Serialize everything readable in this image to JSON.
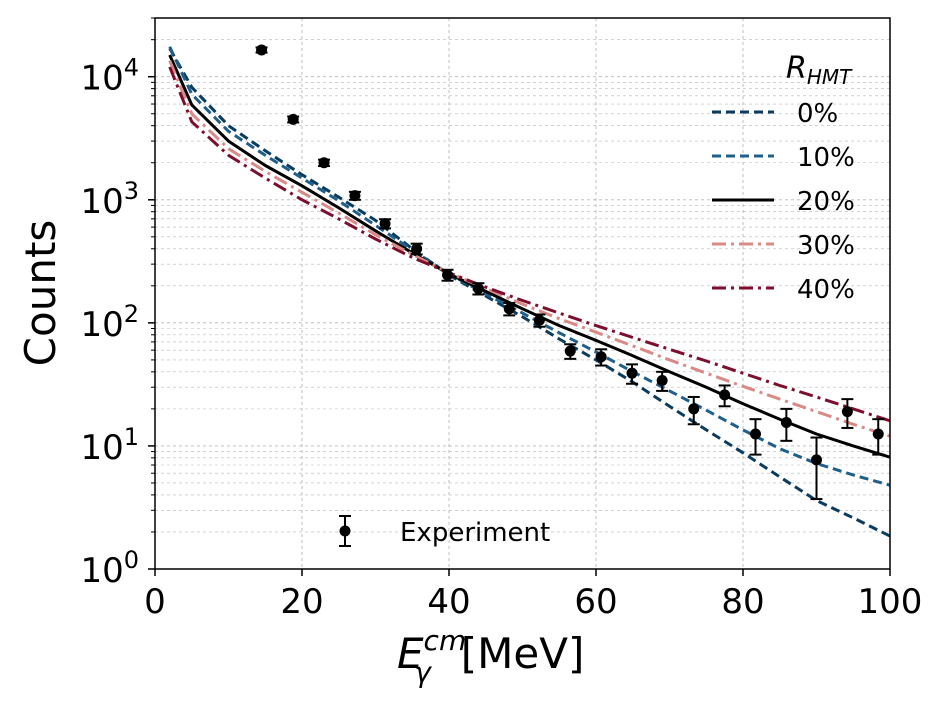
{
  "chart_data": {
    "type": "line",
    "xlabel_base": "E",
    "xlabel_sup": "cm",
    "xlabel_sub": "γ",
    "xlabel_unit": "[MeV]",
    "ylabel": "Counts",
    "xlim": [
      0,
      100
    ],
    "ylim": [
      1,
      30000
    ],
    "yscale": "log",
    "grid": true,
    "legend_title_base": "R",
    "legend_title_sub": "HMT",
    "legend_placement": "top-right",
    "x_ticks": [
      "0",
      "20",
      "40",
      "60",
      "80",
      "100"
    ],
    "y_ticks": [
      {
        "base": "10",
        "exp": "0"
      },
      {
        "base": "10",
        "exp": "1"
      },
      {
        "base": "10",
        "exp": "2"
      },
      {
        "base": "10",
        "exp": "3"
      },
      {
        "base": "10",
        "exp": "4"
      }
    ],
    "series": [
      {
        "name": "0%",
        "color": "#0b3c5d",
        "dash": "dashed",
        "x": [
          2,
          5,
          10,
          15,
          20,
          25,
          30,
          35,
          40,
          45,
          50,
          55,
          60,
          65,
          70,
          75,
          80,
          85,
          90,
          95,
          100
        ],
        "y": [
          17000,
          8200,
          4000,
          2500,
          1600,
          1050,
          680,
          400,
          245,
          165,
          112,
          74,
          50,
          33,
          21,
          13.5,
          8.8,
          5.6,
          3.6,
          2.6,
          1.85
        ]
      },
      {
        "name": "10%",
        "color": "#1f5f8b",
        "dash": "dashed",
        "x": [
          2,
          5,
          10,
          15,
          20,
          25,
          30,
          35,
          40,
          45,
          50,
          55,
          60,
          65,
          70,
          75,
          80,
          85,
          90,
          95,
          100
        ],
        "y": [
          17500,
          7200,
          3600,
          2300,
          1500,
          980,
          620,
          390,
          250,
          172,
          120,
          83,
          58,
          40,
          28,
          19.5,
          13.5,
          9.5,
          7.2,
          5.8,
          4.8
        ]
      },
      {
        "name": "20%",
        "color": "#000000",
        "dash": "solid",
        "x": [
          2,
          5,
          10,
          15,
          20,
          25,
          30,
          35,
          40,
          45,
          50,
          55,
          60,
          65,
          70,
          75,
          80,
          85,
          90,
          95,
          100
        ],
        "y": [
          15000,
          5900,
          3000,
          1900,
          1300,
          860,
          560,
          370,
          250,
          180,
          130,
          95,
          72,
          54,
          40,
          30,
          22,
          16.5,
          12.5,
          10,
          8.1
        ]
      },
      {
        "name": "30%",
        "color": "#d98a86",
        "dash": "dashdot",
        "x": [
          2,
          5,
          10,
          15,
          20,
          25,
          30,
          35,
          40,
          45,
          50,
          55,
          60,
          65,
          70,
          75,
          80,
          85,
          90,
          95,
          100
        ],
        "y": [
          13500,
          5000,
          2600,
          1700,
          1150,
          780,
          520,
          360,
          255,
          190,
          142,
          108,
          84,
          65,
          50,
          39,
          30.5,
          24,
          19,
          15,
          12
        ]
      },
      {
        "name": "40%",
        "color": "#7d0f2e",
        "dash": "dashdot",
        "x": [
          2,
          5,
          10,
          15,
          20,
          25,
          30,
          35,
          40,
          45,
          50,
          55,
          60,
          65,
          70,
          75,
          80,
          85,
          90,
          95,
          100
        ],
        "y": [
          12000,
          4300,
          2300,
          1500,
          1000,
          700,
          480,
          340,
          255,
          195,
          152,
          120,
          95,
          76,
          61,
          49,
          39,
          31,
          25,
          20,
          16
        ]
      }
    ],
    "experiment": {
      "name": "Experiment",
      "color": "#000000",
      "points": [
        {
          "x": 14.5,
          "y": 16500,
          "err": 800
        },
        {
          "x": 18.8,
          "y": 4500,
          "err": 250
        },
        {
          "x": 23,
          "y": 2000,
          "err": 120
        },
        {
          "x": 27.2,
          "y": 1080,
          "err": 80
        },
        {
          "x": 31.3,
          "y": 640,
          "err": 55
        },
        {
          "x": 35.6,
          "y": 400,
          "err": 40
        },
        {
          "x": 39.8,
          "y": 245,
          "err": 25
        },
        {
          "x": 44,
          "y": 190,
          "err": 20
        },
        {
          "x": 48.2,
          "y": 130,
          "err": 15
        },
        {
          "x": 52.3,
          "y": 105,
          "err": 12
        },
        {
          "x": 56.5,
          "y": 59,
          "err": 8
        },
        {
          "x": 60.7,
          "y": 53,
          "err": 8
        },
        {
          "x": 64.9,
          "y": 39,
          "err": 7
        },
        {
          "x": 69,
          "y": 34,
          "err": 6
        },
        {
          "x": 73.3,
          "y": 20,
          "err": 5
        },
        {
          "x": 77.5,
          "y": 26,
          "err": 5
        },
        {
          "x": 81.7,
          "y": 12.5,
          "err": 4
        },
        {
          "x": 85.9,
          "y": 15.5,
          "err": 4.5
        },
        {
          "x": 90,
          "y": 7.7,
          "err": 4
        },
        {
          "x": 94.2,
          "y": 19,
          "err": 5
        },
        {
          "x": 98.4,
          "y": 12.5,
          "err": 4
        }
      ]
    }
  }
}
